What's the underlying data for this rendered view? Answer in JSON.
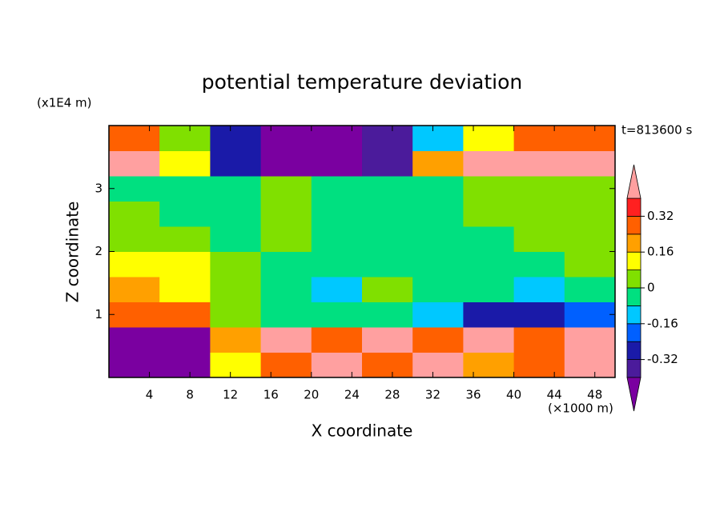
{
  "chart_data": {
    "type": "contour",
    "title": "potential temperature deviation",
    "annotation": "t=813600 s",
    "x_label": "X coordinate",
    "y_label": "Z coordinate",
    "x_unit": "(×1000 m)",
    "y_unit": "(x1E4 m)",
    "xlim": [
      0,
      50
    ],
    "ylim": [
      0,
      4
    ],
    "xticks": [
      4,
      8,
      12,
      16,
      20,
      24,
      28,
      32,
      36,
      40,
      44,
      48
    ],
    "yticks": [
      1,
      2,
      3
    ],
    "x": [
      2.5,
      7.5,
      12.5,
      17.5,
      22.5,
      27.5,
      32.5,
      37.5,
      42.5,
      47.5
    ],
    "y": [
      0.2,
      0.6,
      1.0,
      1.4,
      1.8,
      2.2,
      2.6,
      3.0,
      3.4,
      3.8
    ],
    "z": [
      [
        -0.45,
        -0.45,
        0.1,
        0.3,
        0.45,
        0.3,
        0.45,
        0.2,
        0.3,
        0.45
      ],
      [
        -0.45,
        -0.45,
        0.2,
        0.45,
        0.3,
        0.45,
        0.3,
        0.45,
        0.3,
        0.45
      ],
      [
        0.3,
        0.28,
        0.04,
        -0.04,
        -0.04,
        -0.04,
        -0.1,
        -0.3,
        -0.3,
        -0.2
      ],
      [
        0.2,
        0.15,
        0.04,
        -0.04,
        -0.1,
        0.04,
        -0.04,
        -0.04,
        -0.1,
        -0.04
      ],
      [
        0.12,
        0.1,
        0.04,
        -0.04,
        -0.04,
        -0.04,
        -0.04,
        -0.04,
        -0.04,
        0.04
      ],
      [
        0.04,
        0.04,
        -0.04,
        0.04,
        -0.04,
        -0.04,
        -0.04,
        -0.04,
        0.04,
        0.04
      ],
      [
        0.04,
        -0.04,
        -0.04,
        0.04,
        -0.04,
        -0.04,
        -0.04,
        0.04,
        0.04,
        0.04
      ],
      [
        -0.04,
        -0.04,
        -0.04,
        0.04,
        -0.04,
        -0.04,
        -0.04,
        0.04,
        0.04,
        0.04
      ],
      [
        0.45,
        0.1,
        -0.3,
        -0.45,
        -0.45,
        -0.35,
        0.2,
        0.45,
        0.45,
        0.45
      ],
      [
        0.3,
        0.0,
        -0.3,
        -0.45,
        -0.45,
        -0.4,
        -0.1,
        0.1,
        0.3,
        0.3
      ]
    ],
    "levels": [
      -0.4,
      -0.32,
      -0.24,
      -0.16,
      -0.08,
      0,
      0.08,
      0.16,
      0.24,
      0.32,
      0.4
    ],
    "colors": [
      "#7a00a0",
      "#4b1b9b",
      "#1a1aa8",
      "#0060ff",
      "#00c8ff",
      "#00e080",
      "#80e000",
      "#ffff00",
      "#ffa000",
      "#ff6000",
      "#ff2020",
      "#ffa0a0"
    ],
    "colorbar_ticks": [
      -0.32,
      -0.16,
      0,
      0.16,
      0.32
    ]
  }
}
